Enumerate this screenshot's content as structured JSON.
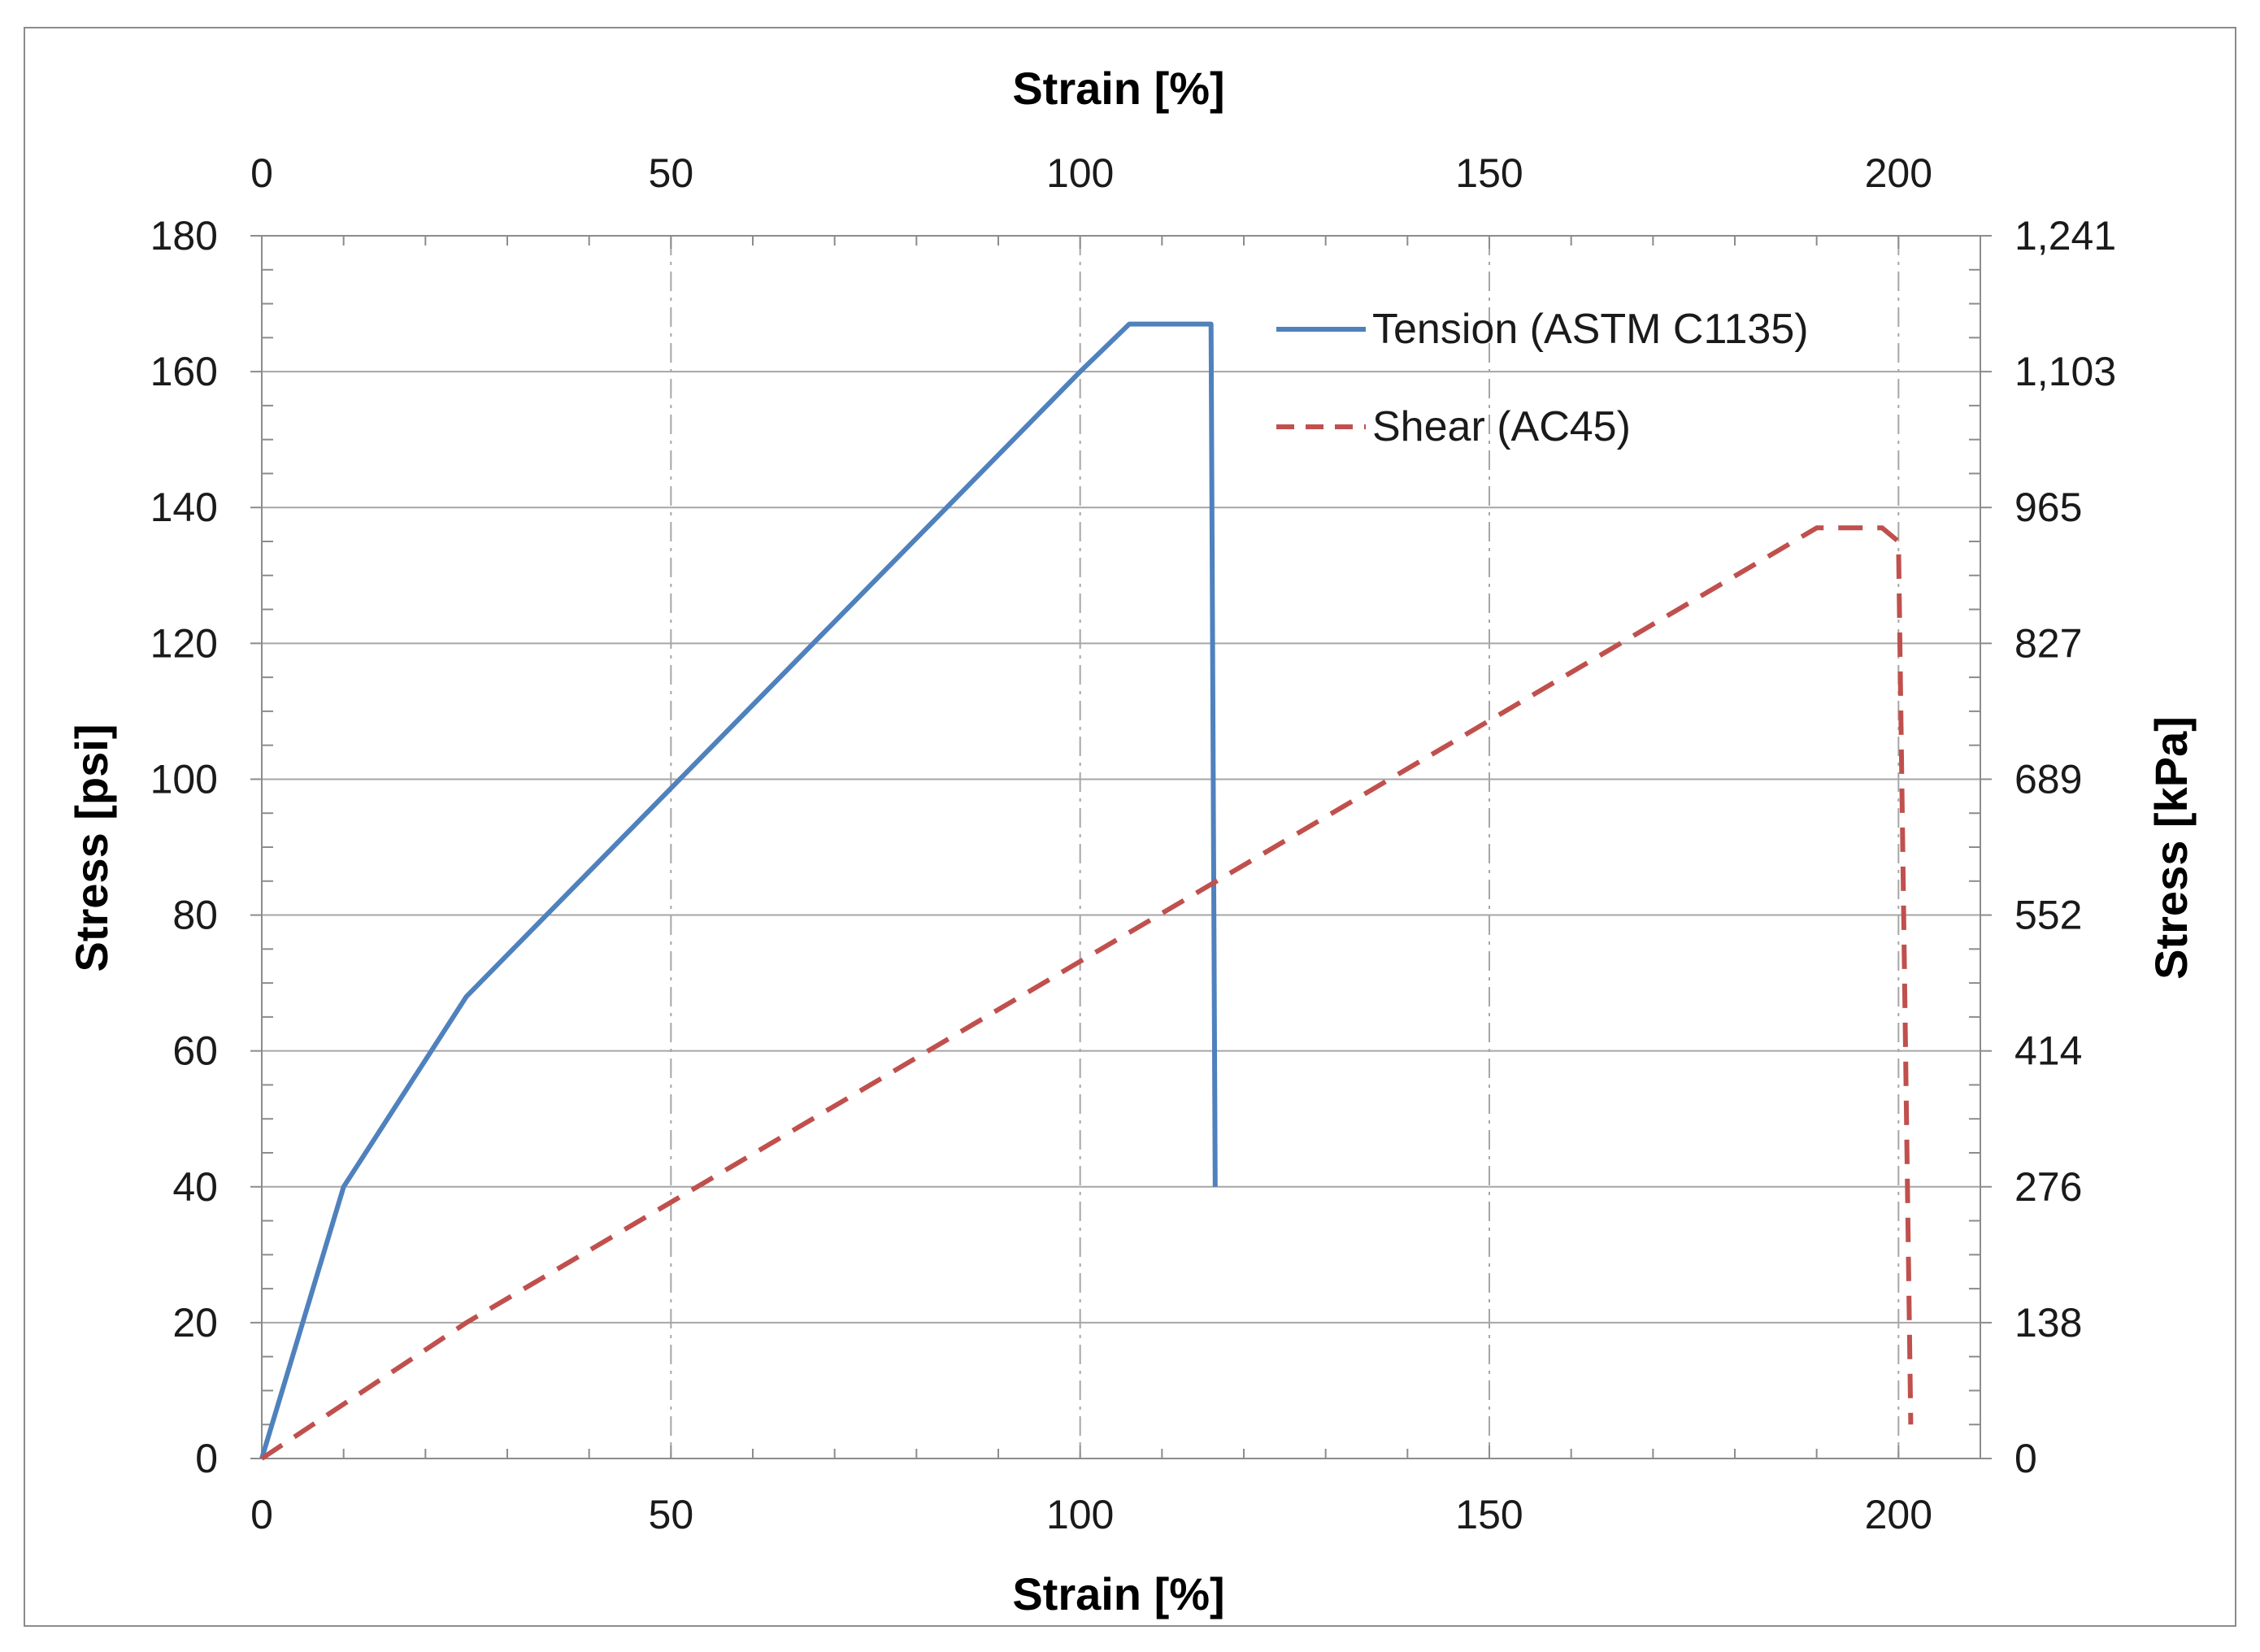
{
  "chart_data": {
    "type": "line",
    "x_title_bottom": "Strain [%]",
    "x_title_top": "Strain [%]",
    "y_title_left": "Stress [psi]",
    "y_title_right": "Stress [kPa]",
    "xlim": [
      0,
      210
    ],
    "ylim": [
      0,
      180
    ],
    "x_ticks": [
      "0",
      "50",
      "100",
      "150",
      "200"
    ],
    "x_tick_values": [
      0,
      50,
      100,
      150,
      200
    ],
    "y_ticks": [
      "0",
      "20",
      "40",
      "60",
      "80",
      "100",
      "120",
      "140",
      "160",
      "180"
    ],
    "y_tick_values": [
      0,
      20,
      40,
      60,
      80,
      100,
      120,
      140,
      160,
      180
    ],
    "y_right_ticks": [
      "0",
      "138",
      "276",
      "414",
      "552",
      "689",
      "827",
      "965",
      "1,103",
      "1,241"
    ],
    "grid": true,
    "legend_position": "top-right",
    "series": [
      {
        "name": "Tension (ASTM C1135)",
        "color": "#4f81bd",
        "style": "solid",
        "x": [
          0,
          10,
          25,
          100,
          106,
          116,
          116.5
        ],
        "y": [
          0,
          40,
          68,
          160,
          167,
          167,
          40
        ]
      },
      {
        "name": "Shear (AC45)",
        "color": "#c0504d",
        "style": "dashed",
        "x": [
          0,
          25,
          190,
          198,
          200,
          201.5
        ],
        "y": [
          0,
          20,
          137,
          137,
          135,
          5
        ]
      }
    ]
  }
}
